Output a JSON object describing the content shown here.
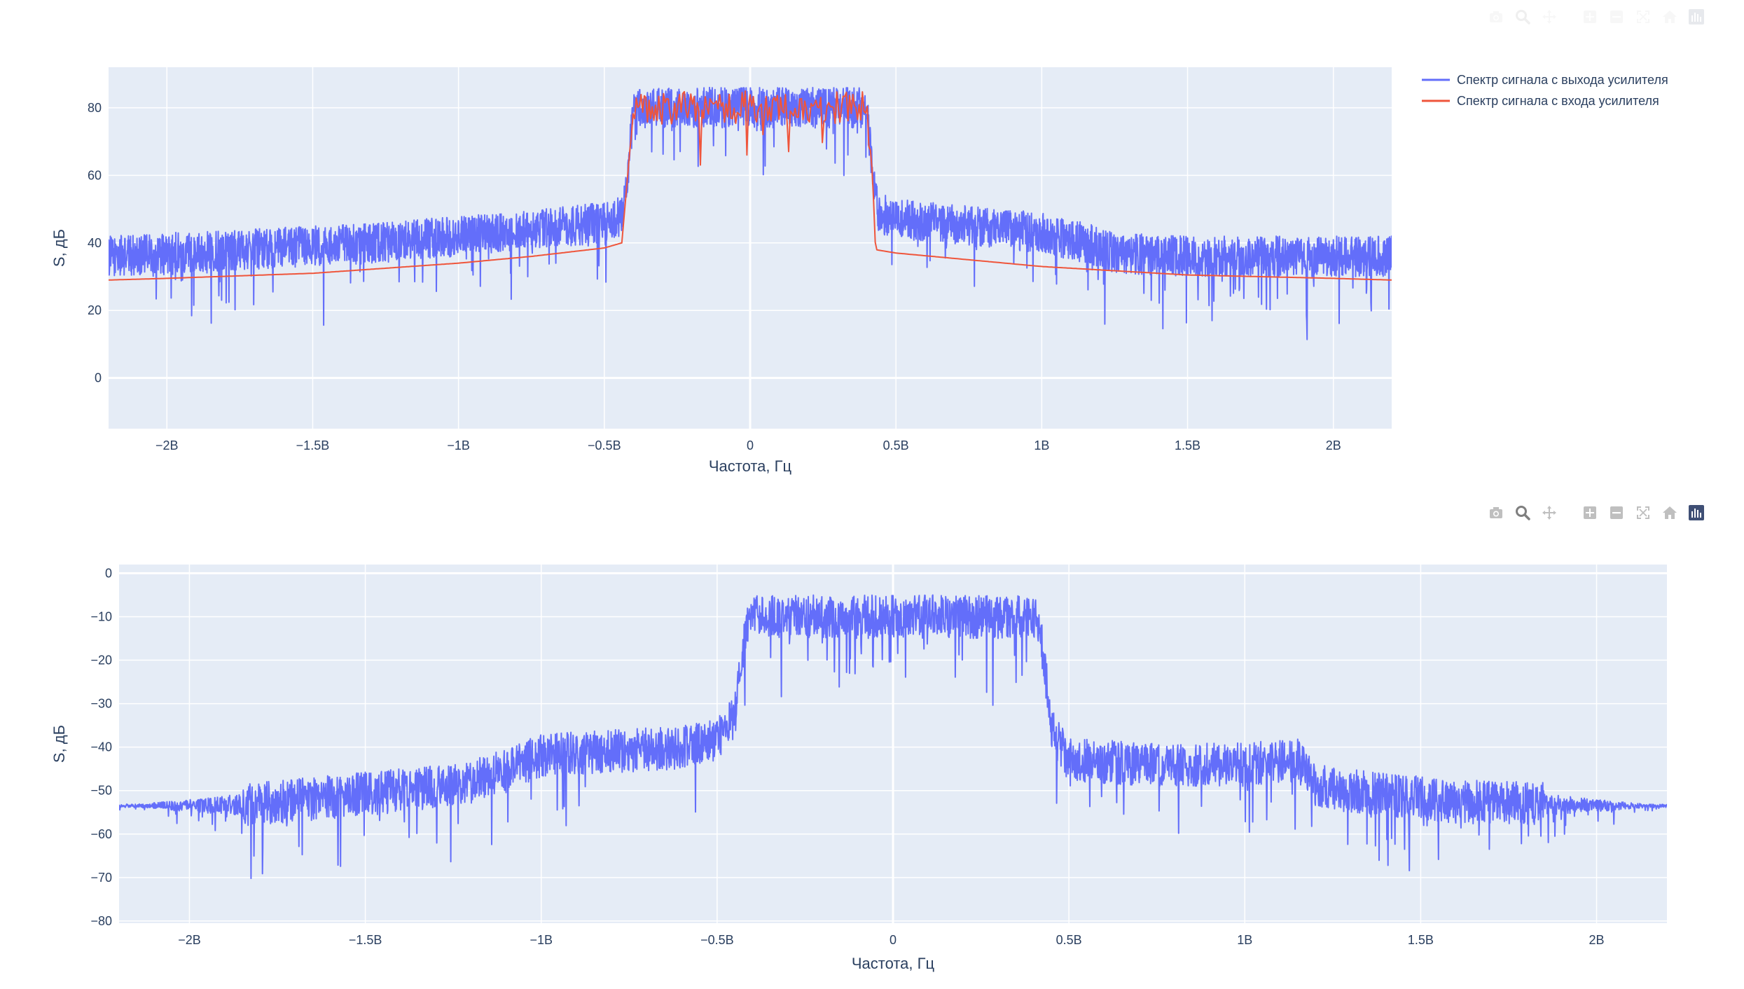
{
  "modebar": {
    "top_faded": true,
    "buttons": [
      "camera-icon",
      "zoom-icon",
      "pan-icon",
      "zoom-in-icon",
      "zoom-out-icon",
      "autoscale-icon",
      "home-icon",
      "plotly-logo-icon"
    ]
  },
  "chart_data": [
    {
      "type": "line",
      "title": "",
      "xlabel": "Частота, Гц",
      "ylabel": "S, дБ",
      "xlim": [
        -2.2,
        2.2
      ],
      "ylim": [
        -15,
        92
      ],
      "x_tick_values": [
        -2,
        -1.5,
        -1,
        -0.5,
        0,
        0.5,
        1,
        1.5,
        2
      ],
      "x_tick_labels": [
        "−2B",
        "−1.5B",
        "−1B",
        "−0.5B",
        "0",
        "0.5B",
        "1B",
        "1.5B",
        "2B"
      ],
      "y_tick_values": [
        0,
        20,
        40,
        60,
        80
      ],
      "y_tick_labels": [
        "0",
        "20",
        "40",
        "60",
        "80"
      ],
      "grid": true,
      "legend_position": "top-right, outside plot",
      "series": [
        {
          "name": "Спектр сигнала с выхода усилителя",
          "color": "#636efa",
          "x": [
            -2.2,
            -2.0,
            -1.75,
            -1.5,
            -1.25,
            -1.0,
            -0.75,
            -0.5,
            -0.44,
            -0.42,
            -0.4,
            0.0,
            0.4,
            0.42,
            0.44,
            0.5,
            0.75,
            1.0,
            1.15,
            1.25,
            1.5,
            1.75,
            2.0,
            2.2
          ],
          "values": [
            36,
            37,
            38,
            39,
            40,
            42,
            44,
            46,
            48,
            60,
            80,
            80,
            80,
            60,
            49,
            47,
            45,
            43,
            40,
            37,
            36,
            36,
            36,
            36
          ],
          "noise_amplitude": 6
        },
        {
          "name": "Спектр сигнала с входа усилителя",
          "color": "#ef553b",
          "x": [
            -2.2,
            -2.0,
            -1.5,
            -1.0,
            -0.75,
            -0.5,
            -0.44,
            -0.42,
            -0.4,
            0.0,
            0.4,
            0.42,
            0.43,
            0.5,
            0.75,
            1.0,
            1.5,
            2.0,
            2.2
          ],
          "values": [
            29,
            29.5,
            31,
            34,
            36,
            38.5,
            40,
            60,
            80,
            80,
            80,
            60,
            38,
            37,
            35,
            33,
            30.5,
            29.5,
            29
          ]
        }
      ]
    },
    {
      "type": "line",
      "title": "",
      "xlabel": "Частота, Гц",
      "ylabel": "S, дБ",
      "xlim": [
        -2.2,
        2.2
      ],
      "ylim": [
        -80.5,
        2
      ],
      "x_tick_values": [
        -2,
        -1.5,
        -1,
        -0.5,
        0,
        0.5,
        1,
        1.5,
        2
      ],
      "x_tick_labels": [
        "−2B",
        "−1.5B",
        "−1B",
        "−0.5B",
        "0",
        "0.5B",
        "1B",
        "1.5B",
        "2B"
      ],
      "y_tick_values": [
        0,
        -10,
        -20,
        -30,
        -40,
        -50,
        -60,
        -70,
        -80
      ],
      "y_tick_labels": [
        "0",
        "−10",
        "−20",
        "−30",
        "−40",
        "−50",
        "−60",
        "−70",
        "−80"
      ],
      "grid": true,
      "series": [
        {
          "color": "#636efa",
          "x": [
            -2.2,
            -2.0,
            -1.8,
            -1.6,
            -1.4,
            -1.2,
            -1.1,
            -1.0,
            -0.8,
            -0.6,
            -0.5,
            -0.45,
            -0.43,
            -0.41,
            0.0,
            0.41,
            0.43,
            0.45,
            0.5,
            0.75,
            1.0,
            1.15,
            1.2,
            1.4,
            1.6,
            1.8,
            2.0,
            2.2
          ],
          "values": [
            -53.5,
            -53.5,
            -53,
            -51.5,
            -50,
            -48,
            -45,
            -42,
            -41,
            -40,
            -38,
            -33,
            -20,
            -10,
            -10,
            -10,
            -20,
            -36,
            -43,
            -44,
            -44,
            -43,
            -49,
            -51,
            -52.5,
            -53,
            -53.5,
            -53.5
          ],
          "noise_amplitude": 5
        }
      ]
    }
  ]
}
